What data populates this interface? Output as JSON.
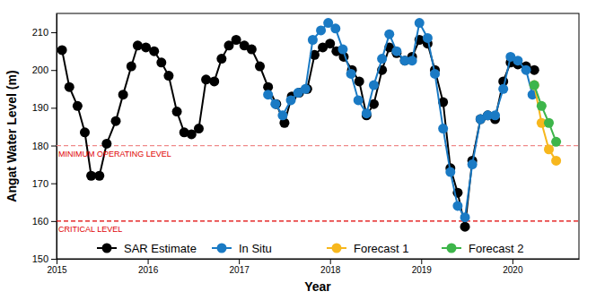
{
  "chart_data": {
    "type": "line",
    "x_label": "Year",
    "y_label": "Angat Water Level (m)",
    "xlim": [
      2015,
      2020.73
    ],
    "xticks": [
      2015,
      2016,
      2017,
      2018,
      2019,
      2020
    ],
    "ylim": [
      150,
      215
    ],
    "yticks": [
      150,
      160,
      170,
      180,
      190,
      200,
      210
    ],
    "grid": false,
    "legend": "bottom",
    "marker": "circle",
    "reference_lines": [
      {
        "value": 180,
        "label": "MINIMUM OPERATING LEVEL",
        "color": "#f08a8a",
        "line_style": "dashed"
      },
      {
        "value": 160,
        "label": "CRITICAL LEVEL",
        "color": "#e00000",
        "line_style": "dashed"
      }
    ],
    "series": [
      {
        "name": "SAR Estimate",
        "color": "#000000",
        "x": [
          2015.06,
          2015.14,
          2015.23,
          2015.31,
          2015.38,
          2015.47,
          2015.55,
          2015.65,
          2015.73,
          2015.82,
          2015.89,
          2015.98,
          2016.07,
          2016.15,
          2016.23,
          2016.32,
          2016.4,
          2016.48,
          2016.56,
          2016.64,
          2016.73,
          2016.81,
          2016.89,
          2016.97,
          2017.06,
          2017.14,
          2017.23,
          2017.32,
          2017.41,
          2017.5,
          2017.58,
          2017.66,
          2017.75,
          2017.83,
          2017.92,
          2018.0,
          2018.07,
          2018.15,
          2018.24,
          2018.32,
          2018.4,
          2018.48,
          2018.57,
          2018.65,
          2018.73,
          2018.82,
          2018.9,
          2018.98,
          2019.07,
          2019.15,
          2019.24,
          2019.32,
          2019.4,
          2019.48,
          2019.56,
          2019.65,
          2019.73,
          2019.81,
          2019.9,
          2019.98,
          2020.06,
          2020.15,
          2020.24
        ],
        "values": [
          205.3,
          195.5,
          190.5,
          183.5,
          172,
          172,
          180.5,
          186.5,
          193.5,
          201,
          206.5,
          206,
          205,
          202,
          198.5,
          189,
          183.5,
          183,
          184.5,
          197.5,
          197,
          203,
          206.5,
          208,
          206.5,
          205.5,
          201,
          195.5,
          191,
          186,
          193,
          194,
          195,
          204,
          206,
          207,
          205,
          203.5,
          200,
          197,
          188,
          191,
          200,
          206,
          204.5,
          202.5,
          203.5,
          208,
          207,
          200,
          191.5,
          174,
          167.5,
          158.5,
          176,
          187,
          188,
          187,
          197,
          202,
          201.5,
          201,
          200
        ]
      },
      {
        "name": "In Situ",
        "color": "#1a7ac4",
        "x": [
          2017.32,
          2017.4,
          2017.48,
          2017.57,
          2017.65,
          2017.73,
          2017.81,
          2017.9,
          2017.98,
          2018.06,
          2018.14,
          2018.23,
          2018.31,
          2018.4,
          2018.48,
          2018.57,
          2018.65,
          2018.73,
          2018.82,
          2018.9,
          2018.98,
          2019.07,
          2019.15,
          2019.24,
          2019.32,
          2019.4,
          2019.48,
          2019.56,
          2019.65,
          2019.73,
          2019.81,
          2019.9,
          2019.98,
          2020.06,
          2020.15,
          2020.22
        ],
        "values": [
          193.5,
          191,
          188,
          192,
          194,
          195,
          208,
          210.5,
          212.5,
          211,
          205.5,
          199,
          192,
          188.5,
          196,
          203,
          209.5,
          205,
          202.5,
          202.5,
          212.5,
          208.5,
          199,
          184.5,
          173,
          164,
          161,
          175,
          187,
          188,
          188,
          195,
          203.5,
          202.5,
          200,
          193.5
        ]
      },
      {
        "name": "Forecast 1",
        "color": "#f7b71d",
        "x": [
          2020.24,
          2020.32,
          2020.4,
          2020.48
        ],
        "values": [
          196,
          186,
          179,
          176
        ]
      },
      {
        "name": "Forecast 2",
        "color": "#3db54a",
        "x": [
          2020.24,
          2020.32,
          2020.4,
          2020.48
        ],
        "values": [
          196,
          190.5,
          186,
          181
        ]
      }
    ]
  }
}
